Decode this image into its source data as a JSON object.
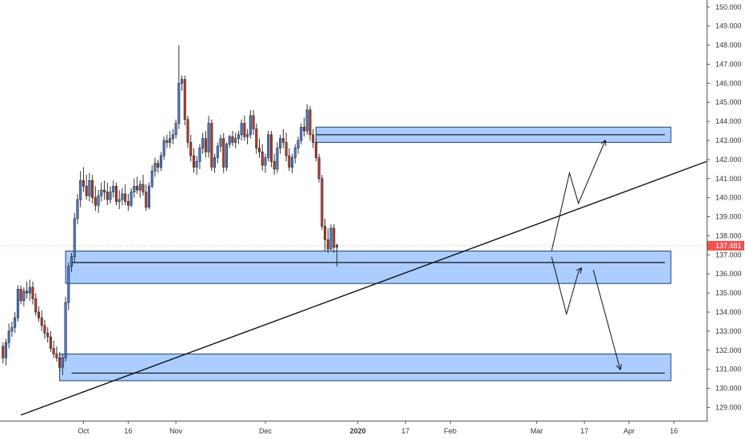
{
  "chart_data": {
    "type": "candlestick",
    "instrument_note": "",
    "colors": {
      "up": "#4a7fd8",
      "down": "#c0392b",
      "wick": "#333333",
      "zone_fill": "#8fbcff",
      "zone_stroke": "#1f3f7a",
      "line": "#111111",
      "current_price_badge": "#ef5350",
      "current_price_line": "#f4a6a6"
    },
    "y_axis": {
      "min": 128.6,
      "max": 150.2,
      "ticks": [
        "150.000",
        "149.000",
        "148.000",
        "147.000",
        "146.000",
        "145.000",
        "144.000",
        "143.000",
        "142.000",
        "141.000",
        "140.000",
        "139.000",
        "138.000",
        "137.000",
        "136.000",
        "135.000",
        "134.000",
        "133.000",
        "132.000",
        "131.000",
        "130.000",
        "129.000"
      ],
      "tick_values": [
        150,
        149,
        148,
        147,
        146,
        145,
        144,
        143,
        142,
        141,
        140,
        139,
        138,
        137,
        136,
        135,
        134,
        133,
        132,
        131,
        130,
        129
      ]
    },
    "x_axis": {
      "labels": [
        {
          "text": "Oct",
          "day": 28,
          "bold": false
        },
        {
          "text": "16",
          "day": 43,
          "bold": false
        },
        {
          "text": "Nov",
          "day": 59,
          "bold": false
        },
        {
          "text": "Dec",
          "day": 89,
          "bold": false
        },
        {
          "text": "2020",
          "day": 120,
          "bold": true
        },
        {
          "text": "17",
          "day": 136,
          "bold": false
        },
        {
          "text": "Feb",
          "day": 151,
          "bold": false
        },
        {
          "text": "Mar",
          "day": 180,
          "bold": false
        },
        {
          "text": "17",
          "day": 196,
          "bold": false
        },
        {
          "text": "Apr",
          "day": 211,
          "bold": false
        },
        {
          "text": "16",
          "day": 226,
          "bold": false
        }
      ],
      "day_min": 0,
      "day_max": 237
    },
    "current_price": {
      "label": "137.481",
      "value": 137.481
    },
    "candles": [
      [
        1,
        132.2,
        132.4,
        131.3,
        131.6
      ],
      [
        2,
        131.6,
        132.6,
        131.2,
        132.4
      ],
      [
        3,
        132.4,
        133.4,
        132.1,
        133.0
      ],
      [
        4,
        133.0,
        133.5,
        132.7,
        133.2
      ],
      [
        5,
        133.2,
        134.0,
        132.9,
        133.7
      ],
      [
        6,
        133.7,
        135.4,
        133.5,
        135.2
      ],
      [
        7,
        135.2,
        135.4,
        134.4,
        134.6
      ],
      [
        8,
        134.6,
        135.3,
        134.3,
        135.1
      ],
      [
        9,
        135.1,
        135.6,
        134.7,
        135.0
      ],
      [
        10,
        135.0,
        135.7,
        134.6,
        135.3
      ],
      [
        11,
        135.3,
        135.6,
        134.4,
        134.7
      ],
      [
        12,
        134.7,
        135.0,
        133.8,
        134.0
      ],
      [
        13,
        134.0,
        134.3,
        133.5,
        133.7
      ],
      [
        14,
        133.7,
        134.1,
        133.0,
        133.3
      ],
      [
        15,
        133.3,
        133.6,
        132.6,
        132.9
      ],
      [
        16,
        132.9,
        133.2,
        132.4,
        132.7
      ],
      [
        17,
        132.7,
        133.0,
        131.9,
        132.1
      ],
      [
        18,
        132.1,
        132.5,
        131.6,
        131.8
      ],
      [
        19,
        131.8,
        132.2,
        131.4,
        131.6
      ],
      [
        20,
        131.6,
        131.9,
        130.9,
        131.1
      ],
      [
        21,
        131.1,
        131.8,
        130.7,
        131.6
      ],
      [
        22,
        131.6,
        134.8,
        131.4,
        134.5
      ],
      [
        23,
        134.5,
        136.6,
        134.1,
        136.4
      ],
      [
        24,
        136.4,
        137.1,
        136.1,
        136.9
      ],
      [
        25,
        136.9,
        139.2,
        136.6,
        138.9
      ],
      [
        26,
        138.9,
        140.2,
        138.6,
        139.9
      ],
      [
        27,
        139.9,
        141.4,
        139.5,
        140.9
      ],
      [
        28,
        140.9,
        141.6,
        140.3,
        140.6
      ],
      [
        29,
        140.6,
        141.2,
        139.9,
        140.1
      ],
      [
        30,
        140.1,
        141.3,
        139.8,
        140.9
      ],
      [
        31,
        140.9,
        141.2,
        139.7,
        140.0
      ],
      [
        32,
        140.0,
        140.6,
        139.3,
        139.6
      ],
      [
        33,
        139.6,
        140.4,
        139.2,
        140.1
      ],
      [
        34,
        140.1,
        140.8,
        139.8,
        140.4
      ],
      [
        35,
        140.4,
        140.9,
        139.9,
        140.3
      ],
      [
        36,
        140.3,
        140.8,
        139.6,
        139.9
      ],
      [
        37,
        139.9,
        140.6,
        139.7,
        140.3
      ],
      [
        38,
        140.3,
        140.9,
        140.0,
        140.6
      ],
      [
        39,
        140.6,
        140.8,
        139.6,
        139.8
      ],
      [
        40,
        139.8,
        140.4,
        139.4,
        139.9
      ],
      [
        41,
        139.9,
        140.5,
        139.6,
        140.2
      ],
      [
        42,
        140.2,
        140.7,
        139.6,
        139.8
      ],
      [
        43,
        139.8,
        140.2,
        139.3,
        139.6
      ],
      [
        44,
        139.6,
        140.5,
        139.5,
        140.3
      ],
      [
        45,
        140.3,
        141.0,
        140.0,
        140.6
      ],
      [
        46,
        140.6,
        141.1,
        140.2,
        140.4
      ],
      [
        47,
        140.4,
        140.9,
        140.0,
        140.7
      ],
      [
        48,
        140.7,
        141.2,
        140.1,
        140.3
      ],
      [
        49,
        140.3,
        140.7,
        139.3,
        139.5
      ],
      [
        50,
        139.5,
        140.8,
        139.4,
        140.6
      ],
      [
        51,
        140.6,
        141.7,
        140.5,
        141.4
      ],
      [
        52,
        141.4,
        142.1,
        141.1,
        141.8
      ],
      [
        53,
        141.8,
        142.0,
        141.3,
        141.6
      ],
      [
        54,
        141.6,
        142.4,
        141.4,
        142.2
      ],
      [
        55,
        142.2,
        143.2,
        142.0,
        143.0
      ],
      [
        56,
        143.0,
        143.3,
        142.6,
        142.9
      ],
      [
        57,
        142.9,
        143.5,
        142.6,
        143.1
      ],
      [
        58,
        143.1,
        143.6,
        142.8,
        143.3
      ],
      [
        59,
        143.3,
        144.1,
        143.1,
        143.9
      ],
      [
        60,
        143.9,
        148.0,
        143.6,
        146.0
      ],
      [
        61,
        146.0,
        146.4,
        145.6,
        146.2
      ],
      [
        62,
        146.2,
        146.4,
        143.8,
        144.1
      ],
      [
        63,
        144.1,
        144.3,
        142.6,
        142.9
      ],
      [
        64,
        142.9,
        143.3,
        141.9,
        142.2
      ],
      [
        65,
        142.2,
        142.6,
        141.3,
        141.6
      ],
      [
        66,
        141.6,
        142.2,
        141.2,
        141.9
      ],
      [
        67,
        141.9,
        142.8,
        141.5,
        142.6
      ],
      [
        68,
        142.6,
        143.4,
        142.3,
        143.1
      ],
      [
        69,
        143.1,
        143.5,
        142.1,
        142.4
      ],
      [
        70,
        142.4,
        144.3,
        142.1,
        143.9
      ],
      [
        71,
        143.9,
        144.1,
        141.4,
        141.6
      ],
      [
        72,
        141.6,
        142.3,
        141.3,
        142.1
      ],
      [
        73,
        142.1,
        142.9,
        141.8,
        142.7
      ],
      [
        74,
        142.7,
        143.3,
        142.4,
        143.1
      ],
      [
        75,
        143.1,
        143.4,
        141.3,
        141.6
      ],
      [
        76,
        141.6,
        142.9,
        141.4,
        142.8
      ],
      [
        77,
        142.8,
        143.3,
        142.6,
        143.2
      ],
      [
        78,
        143.2,
        143.5,
        142.7,
        142.9
      ],
      [
        79,
        142.9,
        143.4,
        142.6,
        143.1
      ],
      [
        80,
        143.1,
        143.5,
        142.8,
        143.3
      ],
      [
        81,
        143.3,
        144.1,
        143.0,
        143.9
      ],
      [
        82,
        143.9,
        144.3,
        143.0,
        143.2
      ],
      [
        83,
        143.2,
        143.6,
        142.8,
        143.3
      ],
      [
        84,
        143.3,
        144.6,
        143.1,
        144.3
      ],
      [
        85,
        144.3,
        144.6,
        143.3,
        143.6
      ],
      [
        86,
        143.6,
        143.9,
        142.3,
        142.6
      ],
      [
        87,
        142.6,
        143.1,
        142.1,
        142.4
      ],
      [
        88,
        142.4,
        142.8,
        141.4,
        141.7
      ],
      [
        89,
        141.7,
        142.3,
        141.3,
        142.1
      ],
      [
        90,
        142.1,
        143.5,
        141.9,
        143.3
      ],
      [
        91,
        143.3,
        143.5,
        141.6,
        141.9
      ],
      [
        92,
        141.9,
        142.3,
        141.2,
        141.5
      ],
      [
        93,
        141.5,
        142.9,
        141.3,
        142.6
      ],
      [
        94,
        142.6,
        143.3,
        142.3,
        143.1
      ],
      [
        95,
        143.1,
        143.6,
        142.6,
        142.9
      ],
      [
        96,
        142.9,
        143.4,
        141.9,
        142.2
      ],
      [
        97,
        142.2,
        142.6,
        141.4,
        141.6
      ],
      [
        98,
        141.6,
        142.3,
        141.3,
        142.1
      ],
      [
        99,
        142.1,
        142.8,
        141.8,
        142.6
      ],
      [
        100,
        142.6,
        143.2,
        142.3,
        143.0
      ],
      [
        101,
        143.0,
        143.9,
        142.8,
        143.7
      ],
      [
        102,
        143.7,
        144.2,
        143.2,
        143.5
      ],
      [
        103,
        143.5,
        144.9,
        143.3,
        144.6
      ],
      [
        104,
        144.6,
        144.8,
        143.0,
        143.3
      ],
      [
        105,
        143.3,
        143.6,
        142.6,
        142.9
      ],
      [
        106,
        142.9,
        143.1,
        141.9,
        142.1
      ],
      [
        107,
        142.1,
        142.3,
        140.8,
        141.0
      ],
      [
        108,
        141.0,
        141.2,
        138.3,
        138.5
      ],
      [
        109,
        138.5,
        138.9,
        137.2,
        137.8
      ],
      [
        110,
        137.8,
        138.4,
        137.1,
        137.3
      ],
      [
        111,
        137.3,
        138.6,
        137.2,
        138.4
      ],
      [
        112,
        138.4,
        138.6,
        137.1,
        137.4
      ],
      [
        113,
        137.4,
        137.6,
        136.4,
        137.5
      ]
    ],
    "zones": [
      {
        "price_top": 143.7,
        "price_bottom": 142.9,
        "day_start": 106,
        "day_end": 225
      },
      {
        "price_top": 137.2,
        "price_bottom": 135.5,
        "day_start": 22,
        "day_end": 225
      },
      {
        "price_top": 131.8,
        "price_bottom": 130.4,
        "day_start": 20,
        "day_end": 225
      }
    ],
    "level_lines": [
      {
        "price": 143.3,
        "day_start": 106,
        "day_end": 223
      },
      {
        "price": 136.6,
        "day_start": 24,
        "day_end": 223
      },
      {
        "price": 130.8,
        "day_start": 24,
        "day_end": 223
      }
    ],
    "trendline": {
      "day1": 7,
      "price1": 128.6,
      "day2": 237,
      "price2": 141.9
    },
    "arrow_paths": [
      {
        "points": [
          [
            185,
            137.2
          ],
          [
            191,
            141.3
          ],
          [
            194,
            139.7
          ],
          [
            203,
            143.0
          ]
        ]
      },
      {
        "points": [
          [
            185,
            136.9
          ],
          [
            190,
            133.9
          ],
          [
            194,
            136.1
          ],
          [
            195,
            136.3
          ]
        ]
      },
      {
        "points": [
          [
            199,
            136.2
          ],
          [
            208,
            131.0
          ]
        ]
      }
    ]
  }
}
